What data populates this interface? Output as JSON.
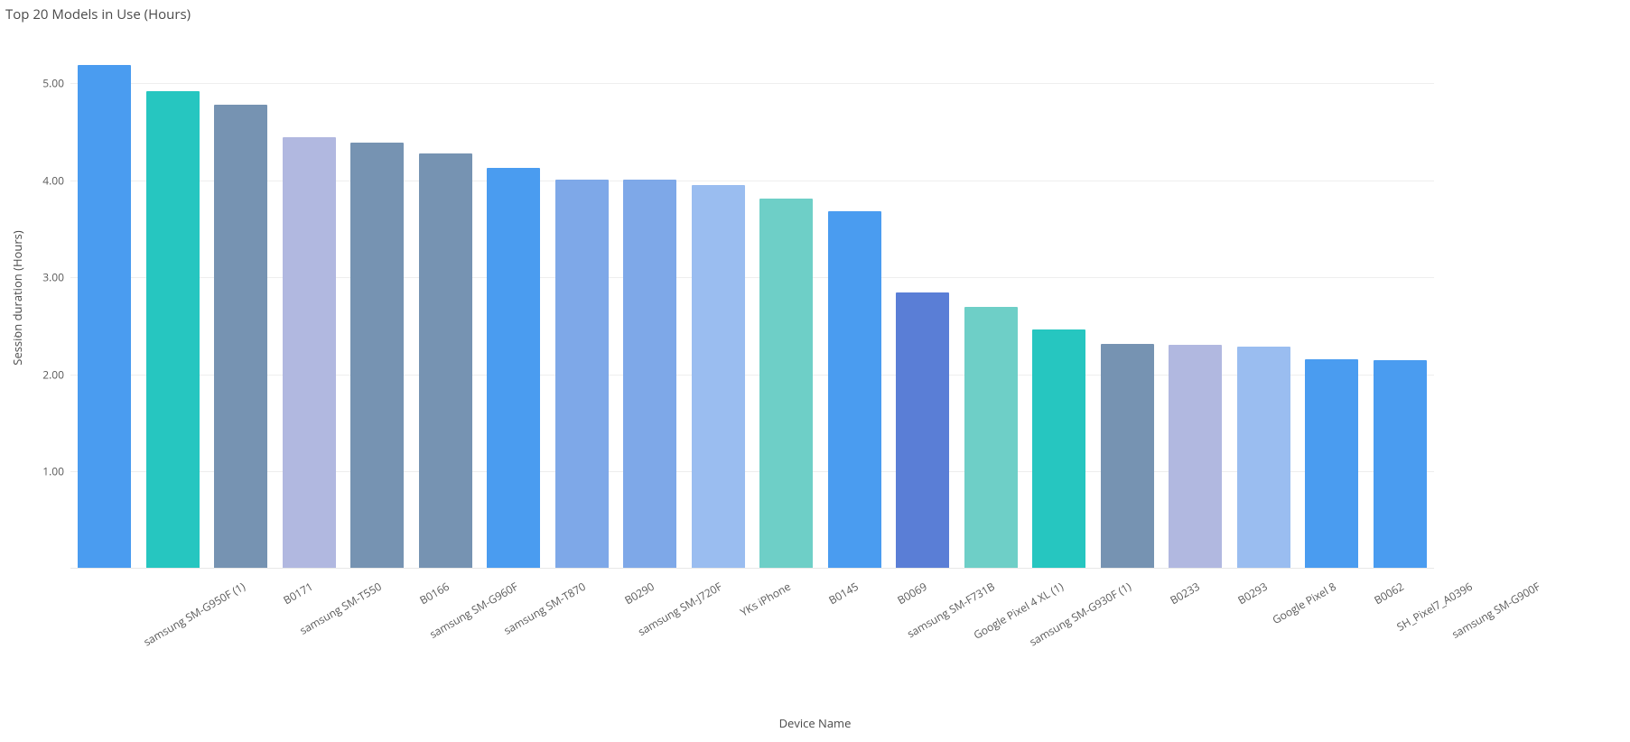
{
  "chart": {
    "type": "bar",
    "title": "Top 20 Models in Use (Hours)",
    "title_fontsize": 15,
    "title_color": "#4a4a4a",
    "x_axis_label": "Device Name",
    "y_axis_label": "Session duration (Hours)",
    "label_fontsize": 13,
    "tick_fontsize": 12,
    "background_color": "#ffffff",
    "grid_color": "#eeeeee",
    "axis_line_color": "#e8e8e8",
    "y_ticks": [
      "1.00",
      "2.00",
      "3.00",
      "4.00",
      "5.00"
    ],
    "y_tick_values": [
      1.0,
      2.0,
      3.0,
      4.0,
      5.0
    ],
    "ylim": [
      0,
      5.58
    ],
    "bar_width": 0.78,
    "categories": [
      "samsung SM-G950F (1)",
      "B0171",
      "samsung SM-T550",
      "B0166",
      "samsung SM-G960F",
      "samsung SM-T870",
      "B0290",
      "samsung SM-J720F",
      "YKs iPhone",
      "B0145",
      "B0069",
      "samsung SM-F731B",
      "Google Pixel 4 XL (1)",
      "samsung SM-G930F (1)",
      "B0233",
      "B0293",
      "Google Pixel 8",
      "B0062",
      "SH_Pixel7_A0396",
      "samsung SM-G900F"
    ],
    "values": [
      5.19,
      4.92,
      4.78,
      4.44,
      4.39,
      4.28,
      4.13,
      4.01,
      4.01,
      3.95,
      3.81,
      3.68,
      2.84,
      2.69,
      2.46,
      2.31,
      2.3,
      2.28,
      2.15,
      2.14
    ],
    "bar_colors": [
      "#4a9cf0",
      "#26c6c0",
      "#7693b2",
      "#b1b8e0",
      "#7693b2",
      "#7693b2",
      "#4a9cf0",
      "#7ea8e8",
      "#7ea8e8",
      "#9abdf0",
      "#6ecfc7",
      "#4a9cf0",
      "#5a7ed6",
      "#6ecfc7",
      "#26c6c0",
      "#7693b2",
      "#b1b8e0",
      "#9abdf0",
      "#4a9cf0",
      "#4a9cf0"
    ]
  }
}
